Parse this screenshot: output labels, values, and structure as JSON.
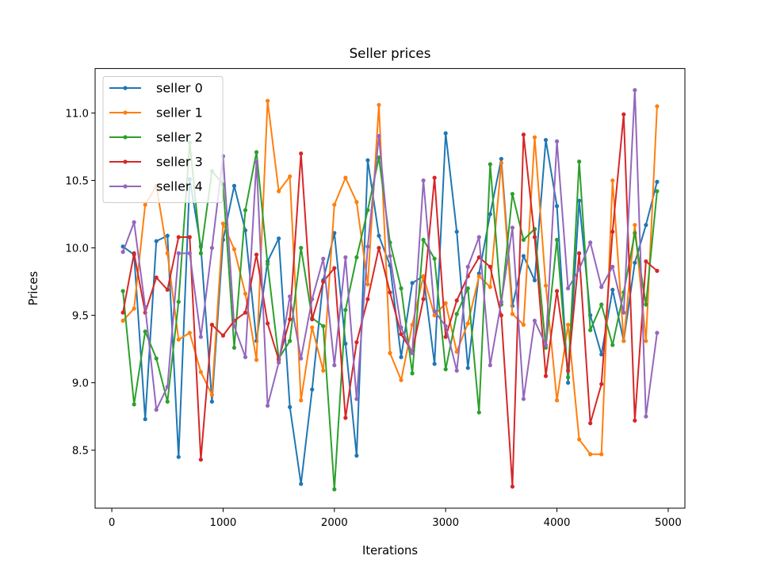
{
  "chart_data": {
    "type": "line",
    "title": "Seller prices",
    "xlabel": "Iterations",
    "ylabel": "Prices",
    "xlim": [
      -150,
      5150
    ],
    "ylim": [
      8.07,
      11.33
    ],
    "x_ticks": [
      0,
      1000,
      2000,
      3000,
      4000,
      5000
    ],
    "y_ticks": [
      8.5,
      9.0,
      9.5,
      10.0,
      10.5,
      11.0
    ],
    "x_tick_labels": [
      "0",
      "1000",
      "2000",
      "3000",
      "4000",
      "5000"
    ],
    "y_tick_labels": [
      "8.5",
      "9.0",
      "9.5",
      "10.0",
      "10.5",
      "11.0"
    ],
    "grid": false,
    "legend_position": "upper-left",
    "x": [
      100,
      200,
      300,
      400,
      500,
      600,
      700,
      800,
      900,
      1000,
      1100,
      1200,
      1300,
      1400,
      1500,
      1600,
      1700,
      1800,
      1900,
      2000,
      2100,
      2200,
      2300,
      2400,
      2500,
      2600,
      2700,
      2800,
      2900,
      3000,
      3100,
      3200,
      3300,
      3400,
      3500,
      3600,
      3700,
      3800,
      3900,
      4000,
      4100,
      4200,
      4300,
      4400,
      4500,
      4600,
      4700,
      4800,
      4900
    ],
    "series": [
      {
        "name": "seller 0",
        "color": "#1f77b4",
        "values": [
          10.01,
          9.95,
          8.73,
          10.05,
          10.09,
          8.45,
          10.51,
          10.01,
          8.86,
          10.06,
          10.46,
          10.13,
          9.31,
          9.9,
          10.07,
          8.82,
          8.25,
          8.95,
          9.76,
          10.11,
          9.29,
          8.46,
          10.65,
          10.09,
          9.87,
          9.19,
          9.74,
          9.79,
          9.14,
          10.85,
          10.12,
          9.11,
          9.81,
          10.25,
          10.66,
          9.57,
          9.94,
          9.76,
          10.8,
          10.31,
          9.0,
          10.35,
          9.5,
          9.21,
          9.69,
          9.31,
          9.89,
          10.17,
          10.49
        ]
      },
      {
        "name": "seller 1",
        "color": "#ff7f0e",
        "values": [
          9.46,
          9.55,
          10.32,
          10.46,
          9.96,
          9.32,
          9.37,
          9.08,
          8.91,
          10.18,
          9.99,
          9.66,
          9.17,
          11.09,
          10.42,
          10.53,
          8.87,
          9.41,
          9.09,
          10.32,
          10.52,
          10.34,
          9.73,
          11.06,
          9.22,
          9.02,
          9.43,
          9.79,
          9.5,
          9.59,
          9.23,
          9.44,
          9.79,
          9.71,
          10.63,
          9.51,
          9.43,
          10.82,
          9.72,
          8.87,
          9.43,
          8.58,
          8.47,
          8.47,
          10.5,
          9.31,
          10.17,
          9.31,
          11.05
        ]
      },
      {
        "name": "seller 2",
        "color": "#2ca02c",
        "values": [
          9.68,
          8.84,
          9.38,
          9.18,
          8.86,
          9.6,
          10.78,
          9.96,
          10.57,
          10.47,
          9.26,
          10.28,
          10.71,
          9.88,
          9.18,
          9.31,
          10.0,
          9.48,
          9.42,
          8.21,
          9.54,
          9.93,
          10.28,
          10.67,
          10.04,
          9.7,
          9.07,
          10.06,
          9.92,
          9.1,
          9.51,
          9.7,
          8.78,
          10.62,
          9.58,
          10.4,
          10.06,
          10.14,
          9.26,
          10.06,
          9.04,
          10.64,
          9.39,
          9.58,
          9.28,
          9.67,
          10.11,
          9.58,
          10.42
        ]
      },
      {
        "name": "seller 3",
        "color": "#d62728",
        "values": [
          9.52,
          9.96,
          9.52,
          9.78,
          9.69,
          10.08,
          10.08,
          8.43,
          9.43,
          9.35,
          9.46,
          9.52,
          9.95,
          9.44,
          9.17,
          9.47,
          10.7,
          9.47,
          9.75,
          9.85,
          8.74,
          9.3,
          9.62,
          10.0,
          9.67,
          9.36,
          9.23,
          9.62,
          10.52,
          9.34,
          9.61,
          9.79,
          9.93,
          9.86,
          9.5,
          8.23,
          10.84,
          10.08,
          9.05,
          9.68,
          9.09,
          9.96,
          8.7,
          8.99,
          10.12,
          10.99,
          8.72,
          9.9,
          9.83
        ]
      },
      {
        "name": "seller 4",
        "color": "#9467bd",
        "values": [
          9.97,
          10.19,
          9.56,
          8.8,
          8.97,
          9.96,
          9.96,
          9.34,
          10.0,
          10.68,
          9.42,
          9.19,
          10.64,
          8.83,
          9.15,
          9.64,
          9.18,
          9.62,
          9.92,
          9.13,
          9.93,
          8.88,
          10.01,
          10.83,
          9.94,
          9.41,
          9.22,
          10.5,
          9.53,
          9.42,
          9.09,
          9.86,
          10.08,
          9.13,
          9.6,
          10.15,
          8.88,
          9.46,
          9.28,
          10.79,
          9.7,
          9.84,
          10.04,
          9.71,
          9.86,
          9.52,
          11.17,
          8.75,
          9.37
        ]
      }
    ]
  }
}
